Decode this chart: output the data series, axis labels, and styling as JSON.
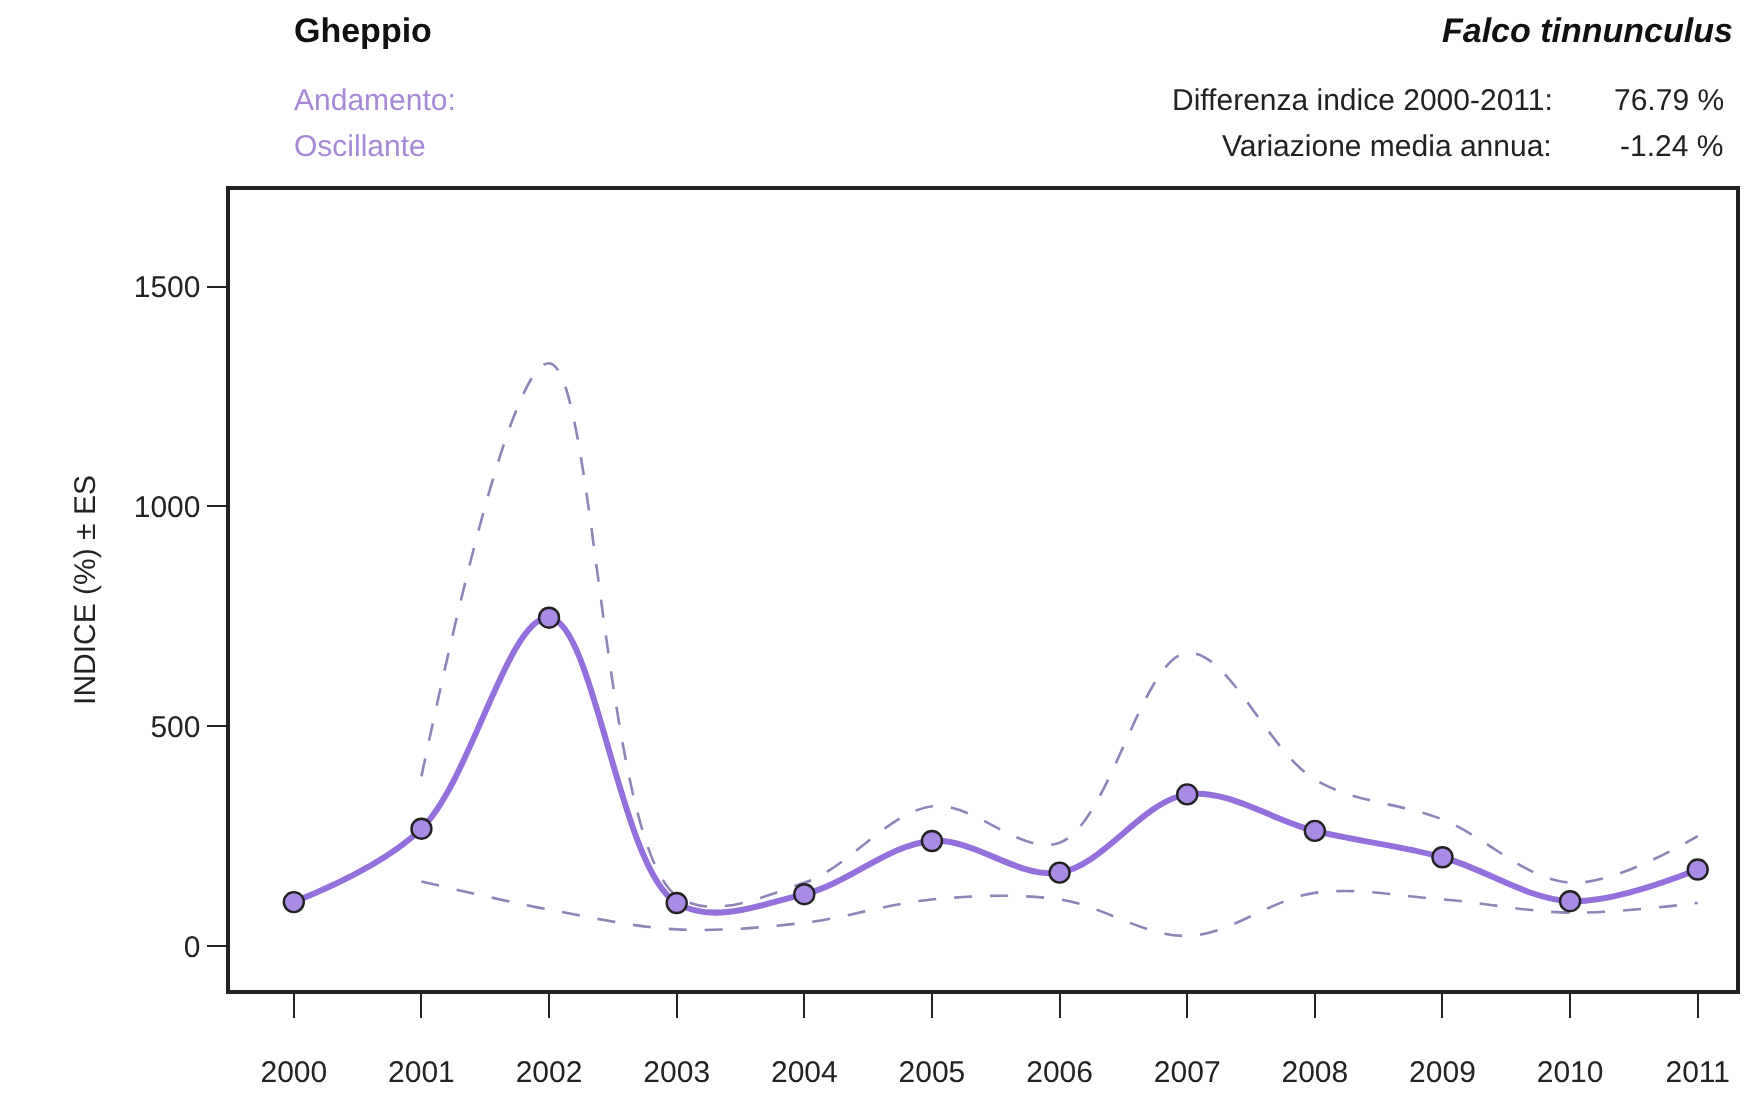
{
  "chart_data": {
    "type": "line",
    "title": "Gheppio",
    "subtitle": "Falco tinnunculus",
    "ylabel": "INDICE (%) ± ES",
    "annotations": [
      "Andamento:",
      "Oscillante",
      "Differenza indice 2000-2011:",
      "76.79 %",
      "Variazione media annua:",
      "-1.24 %"
    ],
    "x": [
      2000,
      2001,
      2002,
      2003,
      2004,
      2005,
      2006,
      2007,
      2008,
      2009,
      2010,
      2011
    ],
    "series": [
      {
        "color": "#8f84b8",
        "line_style": "dashed",
        "marker": "none",
        "values": [
          null,
          386,
          1326,
          114,
          144,
          318,
          235,
          667,
          379,
          288,
          144,
          250
        ]
      },
      {
        "color": "#8f84b8",
        "line_style": "dashed",
        "marker": "none",
        "values": [
          null,
          147,
          83,
          38,
          53,
          106,
          106,
          23,
          121,
          106,
          76,
          98
        ]
      },
      {
        "color": "#9370db",
        "line_style": "solid",
        "marker": "circle",
        "values": [
          100,
          267,
          747,
          98,
          118,
          239,
          167,
          345,
          262,
          202,
          102,
          174
        ]
      }
    ],
    "xlim": [
      1999.5,
      2011.3
    ],
    "ylim": [
      -100,
      1720
    ],
    "xticks": [
      2000,
      2001,
      2002,
      2003,
      2004,
      2005,
      2006,
      2007,
      2008,
      2009,
      2010,
      2011
    ],
    "yticks": [
      0,
      500,
      1000,
      1500
    ]
  }
}
